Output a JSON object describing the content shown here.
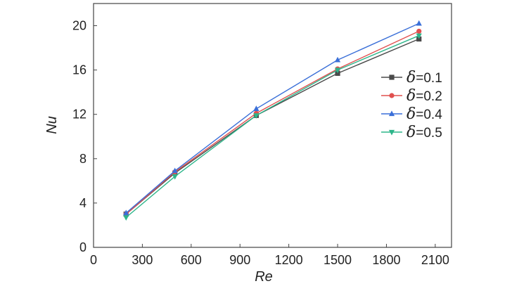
{
  "chart_data": {
    "type": "line",
    "xlabel": "Re",
    "ylabel": "Nu",
    "xlim": [
      0,
      2200
    ],
    "ylim": [
      0,
      22
    ],
    "xticks": [
      0,
      300,
      600,
      900,
      1200,
      1500,
      1800,
      2100
    ],
    "yticks": [
      0,
      4,
      8,
      12,
      16,
      20
    ],
    "x": [
      200,
      500,
      1000,
      1500,
      2000
    ],
    "legend_position": "right",
    "series": [
      {
        "name": "δ=0.1",
        "symbol": "δ",
        "suffix": "=0.1",
        "marker": "square",
        "color": "#4a4a4a",
        "values": [
          3.0,
          6.7,
          11.9,
          15.7,
          18.8
        ]
      },
      {
        "name": "δ=0.2",
        "symbol": "δ",
        "suffix": "=0.2",
        "marker": "circle",
        "color": "#e0504f",
        "values": [
          3.0,
          6.8,
          12.1,
          16.1,
          19.5
        ]
      },
      {
        "name": "δ=0.4",
        "symbol": "δ",
        "suffix": "=0.4",
        "marker": "triangle-up",
        "color": "#3a6fd8",
        "values": [
          3.1,
          6.9,
          12.5,
          16.9,
          20.2
        ]
      },
      {
        "name": "δ=0.5",
        "symbol": "δ",
        "suffix": "=0.5",
        "marker": "triangle-down",
        "color": "#2db58a",
        "values": [
          2.7,
          6.4,
          11.9,
          16.0,
          19.1
        ]
      }
    ]
  }
}
